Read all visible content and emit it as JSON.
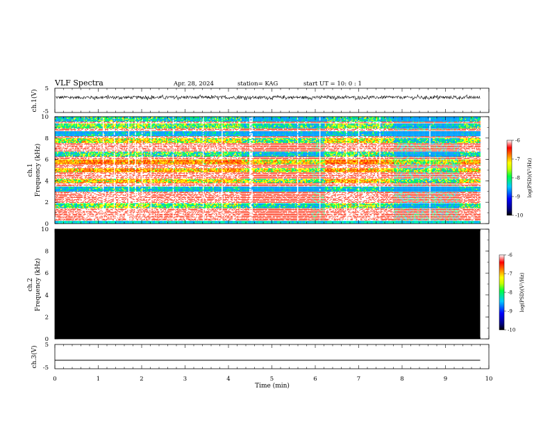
{
  "header": {
    "title": "VLF Spectra",
    "date": "Apr. 28, 2024",
    "station": "station= KAG",
    "start": "start  UT =   10: 0  : 1"
  },
  "chart_data": [
    {
      "type": "line",
      "panel": "ch1-waveform",
      "ylabel": "ch.1(V)",
      "ylim": [
        -5,
        5
      ],
      "yticks": [
        "5",
        "-5"
      ],
      "x": [
        0,
        9.8
      ],
      "baseline": 1.2,
      "noise_amplitude": 0.6
    },
    {
      "type": "heatmap",
      "panel": "ch1-spectrogram",
      "ylabel": "ch.1",
      "ylabel_units": "Frequency (kHz)",
      "ylim": [
        0,
        10
      ],
      "yticks": [
        "0",
        "2",
        "4",
        "6",
        "8",
        "10"
      ],
      "xlim": [
        0,
        10
      ],
      "data_end": 9.8,
      "colorbar": {
        "label": "log(PSD)(V²/Hz)",
        "range": [
          -10,
          -6
        ],
        "ticks": [
          "-6",
          "-7",
          "-8",
          "-9",
          "-10"
        ]
      },
      "intense_time_segments": [
        {
          "start": 0.0,
          "end": 0.6,
          "level": 0.6
        },
        {
          "start": 0.6,
          "end": 2.2,
          "level": 0.45
        },
        {
          "start": 2.2,
          "end": 3.6,
          "level": 0.55
        },
        {
          "start": 3.6,
          "end": 4.3,
          "level": 0.5
        },
        {
          "start": 4.3,
          "end": 5.9,
          "level": 0.75
        },
        {
          "start": 5.9,
          "end": 6.2,
          "level": 0.9
        },
        {
          "start": 6.2,
          "end": 7.4,
          "level": 0.45
        },
        {
          "start": 7.4,
          "end": 7.8,
          "level": 0.6
        },
        {
          "start": 7.8,
          "end": 9.3,
          "level": 0.95
        },
        {
          "start": 9.3,
          "end": 9.8,
          "level": 0.6
        }
      ],
      "frequency_bands_khz": [
        {
          "f": 1.7,
          "level": 0.7
        },
        {
          "f": 3.2,
          "level": 0.85
        },
        {
          "f": 4.0,
          "level": 0.55
        },
        {
          "f": 5.0,
          "level": 0.5
        },
        {
          "f": 5.8,
          "level": 0.45
        },
        {
          "f": 6.5,
          "level": 0.75
        },
        {
          "f": 7.8,
          "level": 0.6
        },
        {
          "f": 8.4,
          "level": 0.9
        },
        {
          "f": 9.1,
          "level": 0.7
        },
        {
          "f": 9.8,
          "level": 0.8
        }
      ],
      "noise_floor_band_khz": [
        0,
        0.25
      ]
    },
    {
      "type": "heatmap",
      "panel": "ch2-spectrogram",
      "ylabel": "ch.2",
      "ylabel_units": "Frequency (kHz)",
      "ylim": [
        0,
        10
      ],
      "yticks": [
        "0",
        "2",
        "4",
        "6",
        "8",
        "10"
      ],
      "xlim": [
        0,
        10
      ],
      "data_end": 9.8,
      "fill": "#000000",
      "colorbar": {
        "label": "log(PSD)(V²/Hz)",
        "range": [
          -10,
          -6
        ],
        "ticks": [
          "-6",
          "-7",
          "-8",
          "-9",
          "-10"
        ]
      }
    },
    {
      "type": "line",
      "panel": "ch3-waveform",
      "ylabel": "ch.3(V)",
      "ylim": [
        -5,
        5
      ],
      "yticks": [
        "5",
        "-5"
      ],
      "x": [
        0,
        9.8
      ],
      "values": [
        -1.5,
        -1.5
      ],
      "xlabel": "Time  (min)",
      "xticks": [
        "0",
        "1",
        "2",
        "3",
        "4",
        "5",
        "6",
        "7",
        "8",
        "9",
        "10"
      ]
    }
  ],
  "colors": {
    "colormap": [
      "#000080",
      "#0000ff",
      "#00c8ff",
      "#00ff60",
      "#ffff00",
      "#ff8000",
      "#ff2000",
      "#ffffff"
    ]
  }
}
